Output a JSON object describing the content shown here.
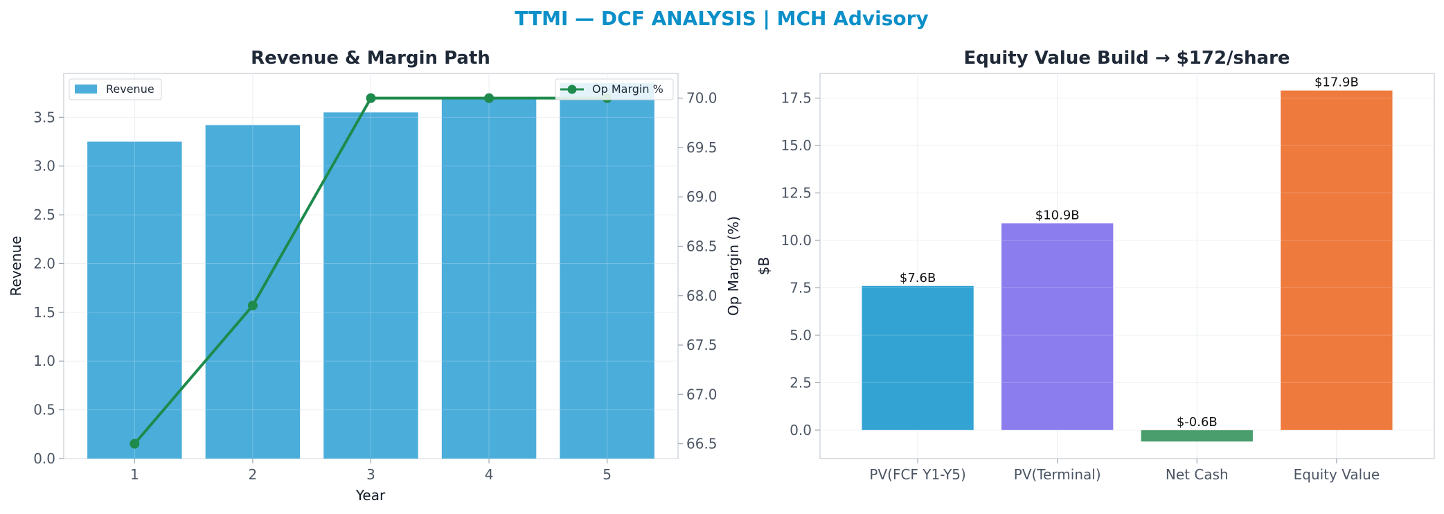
{
  "suptitle": "TTMI — DCF ANALYSIS | MCH Advisory",
  "colors": {
    "suptitle": "#0b8fc8",
    "revenue_bar": "#4badda",
    "op_margin_line": "#1e8a4c",
    "pv_fcf": "#33a3d4",
    "pv_terminal": "#8b7ded",
    "net_cash": "#4a9e6e",
    "equity_value": "#ee7a3d"
  },
  "chart_data": [
    {
      "type": "bar+line",
      "title": "Revenue & Margin Path",
      "xlabel": "Year",
      "ylabel": "Revenue",
      "y2label": "Op Margin (%)",
      "categories": [
        "1",
        "2",
        "3",
        "4",
        "5"
      ],
      "ylim": [
        0,
        3.95
      ],
      "y2lim": [
        66.35,
        70.25
      ],
      "yticks": [
        "0.0",
        "0.5",
        "1.0",
        "1.5",
        "2.0",
        "2.5",
        "3.0",
        "3.5"
      ],
      "y2ticks": [
        "66.5",
        "67.0",
        "67.5",
        "68.0",
        "68.5",
        "69.0",
        "69.5",
        "70.0"
      ],
      "grid": true,
      "series": [
        {
          "name": "Revenue",
          "kind": "bar",
          "axis": "left",
          "values": [
            3.25,
            3.42,
            3.55,
            3.7,
            3.85
          ]
        },
        {
          "name": "Op Margin %",
          "kind": "line",
          "axis": "right",
          "values": [
            66.5,
            67.9,
            70.0,
            70.0,
            70.0
          ]
        }
      ],
      "legend": [
        {
          "name": "Revenue",
          "placement": "top-left"
        },
        {
          "name": "Op Margin %",
          "placement": "top-right"
        }
      ]
    },
    {
      "type": "bar",
      "title": "Equity Value Build → $172/share",
      "xlabel": "",
      "ylabel": "$B",
      "categories": [
        "PV(FCF Y1-Y5)",
        "PV(Terminal)",
        "Net Cash",
        "Equity Value"
      ],
      "values": [
        7.6,
        10.9,
        -0.6,
        17.9
      ],
      "data_labels": [
        "$7.6B",
        "$10.9B",
        "$-0.6B",
        "$17.9B"
      ],
      "ylim": [
        -1.5,
        18.8
      ],
      "yticks": [
        "0.0",
        "2.5",
        "5.0",
        "7.5",
        "10.0",
        "12.5",
        "15.0",
        "17.5"
      ],
      "grid": true
    }
  ]
}
